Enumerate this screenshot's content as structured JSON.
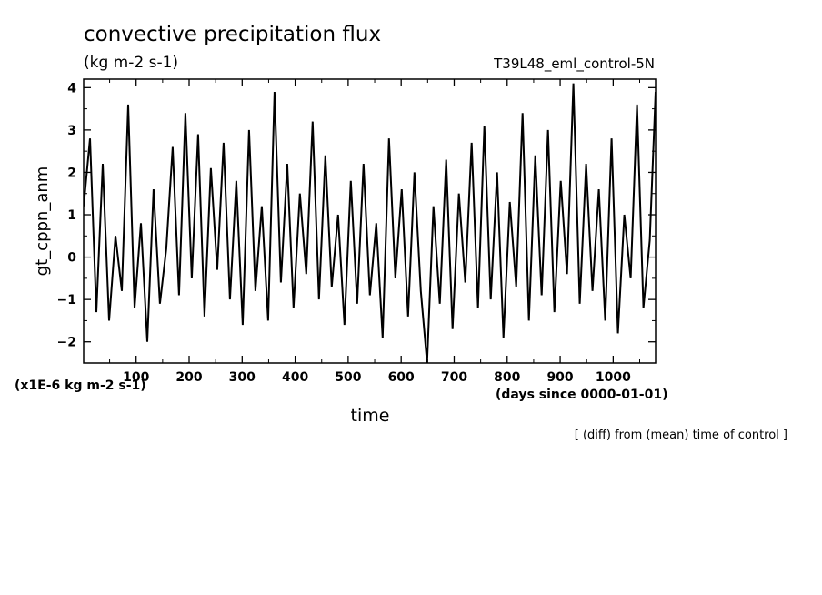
{
  "chart_data": {
    "type": "line",
    "title": "convective precipitation flux",
    "units": "(kg m-2 s-1)",
    "experiment": "T39L48_eml_control-5N",
    "ylabel": "gt_cppn_anm",
    "xlabel": "time",
    "x_units_note": "(days since 0000-01-01)",
    "y_scale_note": "(x1E-6 kg m-2 s-1)",
    "footnote": "[ (diff) from (mean) time of control ]",
    "xlim": [
      1,
      1080
    ],
    "ylim": [
      -2.5,
      4.2
    ],
    "x_ticks": [
      100,
      200,
      300,
      400,
      500,
      600,
      700,
      800,
      900,
      1000
    ],
    "x_tick_labels": [
      "100",
      "200",
      "300",
      "400",
      "500",
      "600",
      "700",
      "800",
      "900",
      "1000"
    ],
    "y_ticks": [
      -2,
      -1,
      0,
      1,
      2,
      3,
      4
    ],
    "y_tick_labels": [
      "−2",
      "−1",
      "0",
      "1",
      "2",
      "3",
      "4"
    ],
    "series": [
      {
        "name": "gt_cppn_anm",
        "x": [
          1,
          13,
          25,
          37,
          49,
          61,
          73,
          85,
          97,
          109,
          121,
          133,
          145,
          157,
          169,
          181,
          193,
          205,
          217,
          229,
          241,
          253,
          265,
          277,
          289,
          301,
          313,
          325,
          337,
          349,
          361,
          373,
          385,
          397,
          409,
          421,
          433,
          445,
          457,
          469,
          481,
          493,
          505,
          517,
          529,
          541,
          553,
          565,
          577,
          589,
          601,
          613,
          625,
          637,
          649,
          661,
          673,
          685,
          697,
          709,
          721,
          733,
          745,
          757,
          769,
          781,
          793,
          805,
          817,
          829,
          841,
          853,
          865,
          877,
          889,
          901,
          913,
          925,
          937,
          949,
          961,
          973,
          985,
          997,
          1009,
          1021,
          1033,
          1045,
          1057,
          1069,
          1080
        ],
        "values": [
          1.2,
          2.8,
          -1.3,
          2.2,
          -1.5,
          0.5,
          -0.8,
          3.6,
          -1.2,
          0.8,
          -2.0,
          1.6,
          -1.1,
          0.2,
          2.6,
          -0.9,
          3.4,
          -0.5,
          2.9,
          -1.4,
          2.1,
          -0.3,
          2.7,
          -1.0,
          1.8,
          -1.6,
          3.0,
          -0.8,
          1.2,
          -1.5,
          3.9,
          -0.6,
          2.2,
          -1.2,
          1.5,
          -0.4,
          3.2,
          -1.0,
          2.4,
          -0.7,
          1.0,
          -1.6,
          1.8,
          -1.1,
          2.2,
          -0.9,
          0.8,
          -1.9,
          2.8,
          -0.5,
          1.6,
          -1.4,
          2.0,
          -0.8,
          -2.5,
          1.2,
          -1.1,
          2.3,
          -1.7,
          1.5,
          -0.6,
          2.7,
          -1.2,
          3.1,
          -1.0,
          2.0,
          -1.9,
          1.3,
          -0.7,
          3.4,
          -1.5,
          2.4,
          -0.9,
          3.0,
          -1.3,
          1.8,
          -0.4,
          4.1,
          -1.1,
          2.2,
          -0.8,
          1.6,
          -1.5,
          2.8,
          -1.8,
          1.0,
          -0.5,
          3.6,
          -1.2,
          0.4,
          3.9
        ]
      }
    ]
  }
}
